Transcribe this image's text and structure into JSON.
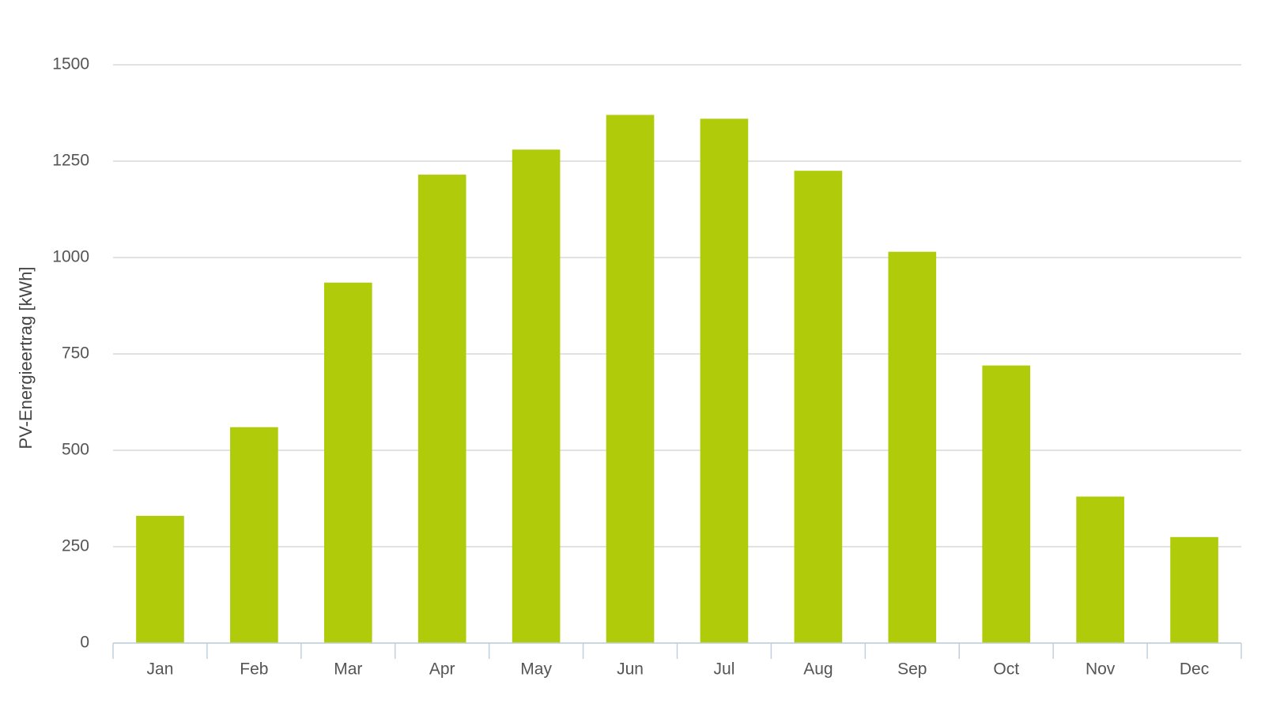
{
  "chart_data": {
    "type": "bar",
    "y_label": "PV-Energieertrag [kWh]",
    "categories": [
      "Jan",
      "Feb",
      "Mar",
      "Apr",
      "May",
      "Jun",
      "Jul",
      "Aug",
      "Sep",
      "Oct",
      "Nov",
      "Dec"
    ],
    "values": [
      330,
      560,
      935,
      1215,
      1280,
      1370,
      1360,
      1225,
      1015,
      720,
      380,
      275
    ],
    "color": "#b0cb0a",
    "ylim": [
      0,
      1500
    ],
    "yticks": [
      0,
      250,
      500,
      750,
      1000,
      1250,
      1500
    ],
    "grid": true
  }
}
